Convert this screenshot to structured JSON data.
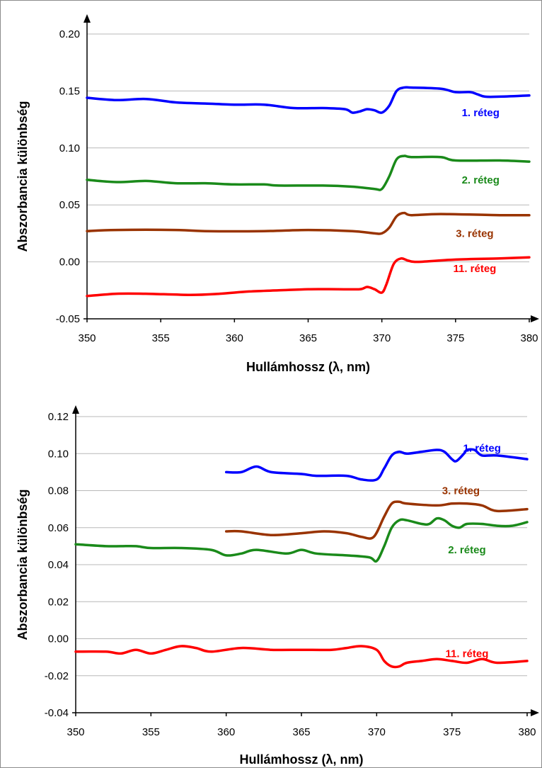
{
  "chart_data": [
    {
      "type": "line",
      "xlabel": "Hullámhossz (λ, nm)",
      "ylabel": "Abszorbancia különbség",
      "xlim": [
        350,
        380
      ],
      "ylim": [
        -0.05,
        0.2
      ],
      "x_ticks": [
        350,
        355,
        360,
        365,
        370,
        375,
        380
      ],
      "y_ticks": [
        "-0.05",
        "0.00",
        "0.05",
        "0.10",
        "0.15",
        "0.20"
      ],
      "grid": "horizontal",
      "series": [
        {
          "name": "1. réteg",
          "color": "#0000ff",
          "label_at": [
            376.7,
            0.131
          ],
          "points": [
            [
              350,
              0.144
            ],
            [
              352,
              0.142
            ],
            [
              354,
              0.143
            ],
            [
              356,
              0.14
            ],
            [
              358,
              0.139
            ],
            [
              360,
              0.138
            ],
            [
              362,
              0.138
            ],
            [
              364,
              0.135
            ],
            [
              366,
              0.135
            ],
            [
              367.5,
              0.134
            ],
            [
              368,
              0.131
            ],
            [
              368.5,
              0.132
            ],
            [
              369,
              0.134
            ],
            [
              369.5,
              0.133
            ],
            [
              370,
              0.131
            ],
            [
              370.5,
              0.137
            ],
            [
              371,
              0.15
            ],
            [
              371.5,
              0.153
            ],
            [
              372,
              0.153
            ],
            [
              374,
              0.152
            ],
            [
              375,
              0.149
            ],
            [
              376,
              0.149
            ],
            [
              376.5,
              0.147
            ],
            [
              377,
              0.145
            ],
            [
              378,
              0.145
            ],
            [
              380,
              0.146
            ]
          ]
        },
        {
          "name": "2. réteg",
          "color": "#1a8a1a",
          "label_at": [
            376.7,
            0.072
          ],
          "points": [
            [
              350,
              0.072
            ],
            [
              352,
              0.07
            ],
            [
              354,
              0.071
            ],
            [
              356,
              0.069
            ],
            [
              358,
              0.069
            ],
            [
              360,
              0.068
            ],
            [
              362,
              0.068
            ],
            [
              363,
              0.067
            ],
            [
              366,
              0.067
            ],
            [
              368,
              0.066
            ],
            [
              369.5,
              0.064
            ],
            [
              370,
              0.064
            ],
            [
              370.5,
              0.075
            ],
            [
              371,
              0.09
            ],
            [
              371.5,
              0.093
            ],
            [
              372,
              0.092
            ],
            [
              374,
              0.092
            ],
            [
              375,
              0.089
            ],
            [
              378,
              0.089
            ],
            [
              380,
              0.088
            ]
          ]
        },
        {
          "name": "3. réteg",
          "color": "#993300",
          "label_at": [
            376.3,
            0.025
          ],
          "points": [
            [
              350,
              0.027
            ],
            [
              352,
              0.028
            ],
            [
              356,
              0.028
            ],
            [
              358,
              0.027
            ],
            [
              362,
              0.027
            ],
            [
              365,
              0.028
            ],
            [
              368,
              0.027
            ],
            [
              369.5,
              0.025
            ],
            [
              370,
              0.025
            ],
            [
              370.5,
              0.03
            ],
            [
              371,
              0.04
            ],
            [
              371.5,
              0.043
            ],
            [
              372,
              0.041
            ],
            [
              374,
              0.042
            ],
            [
              378,
              0.041
            ],
            [
              380,
              0.041
            ]
          ]
        },
        {
          "name": "11. réteg",
          "color": "#ff0000",
          "label_at": [
            376.3,
            -0.006
          ],
          "points": [
            [
              350,
              -0.03
            ],
            [
              352,
              -0.028
            ],
            [
              354,
              -0.028
            ],
            [
              357,
              -0.029
            ],
            [
              359,
              -0.028
            ],
            [
              361,
              -0.026
            ],
            [
              363,
              -0.025
            ],
            [
              365,
              -0.024
            ],
            [
              367,
              -0.024
            ],
            [
              368.5,
              -0.024
            ],
            [
              369,
              -0.022
            ],
            [
              369.5,
              -0.024
            ],
            [
              370,
              -0.027
            ],
            [
              370.3,
              -0.02
            ],
            [
              370.8,
              -0.002
            ],
            [
              371.3,
              0.003
            ],
            [
              371.8,
              0.001
            ],
            [
              372.5,
              0.0
            ],
            [
              375,
              0.002
            ],
            [
              378,
              0.003
            ],
            [
              380,
              0.004
            ]
          ]
        }
      ]
    },
    {
      "type": "line",
      "xlabel": "Hullámhossz (λ, nm)",
      "ylabel": "Abszorbancia különbség",
      "xlim": [
        350,
        380
      ],
      "ylim": [
        -0.04,
        0.12
      ],
      "x_ticks": [
        350,
        355,
        360,
        365,
        370,
        375,
        380
      ],
      "y_ticks": [
        "-0.04",
        "-0.02",
        "0.00",
        "0.02",
        "0.04",
        "0.06",
        "0.08",
        "0.10",
        "0.12"
      ],
      "grid": "horizontal",
      "series": [
        {
          "name": "1. réteg",
          "color": "#0000ff",
          "label_at": [
            377,
            0.103
          ],
          "points": [
            [
              360,
              0.09
            ],
            [
              361,
              0.09
            ],
            [
              362,
              0.093
            ],
            [
              363,
              0.09
            ],
            [
              365,
              0.089
            ],
            [
              366,
              0.088
            ],
            [
              368,
              0.088
            ],
            [
              369,
              0.086
            ],
            [
              370,
              0.086
            ],
            [
              370.5,
              0.092
            ],
            [
              371,
              0.099
            ],
            [
              371.5,
              0.101
            ],
            [
              372,
              0.1
            ],
            [
              373,
              0.101
            ],
            [
              374,
              0.102
            ],
            [
              374.5,
              0.101
            ],
            [
              375,
              0.097
            ],
            [
              375.3,
              0.096
            ],
            [
              375.8,
              0.1
            ],
            [
              376,
              0.102
            ],
            [
              376.5,
              0.102
            ],
            [
              377,
              0.099
            ],
            [
              378,
              0.099
            ],
            [
              380,
              0.097
            ]
          ]
        },
        {
          "name": "3. réteg",
          "color": "#993300",
          "label_at": [
            375.6,
            0.08
          ],
          "points": [
            [
              360,
              0.058
            ],
            [
              361,
              0.058
            ],
            [
              363,
              0.056
            ],
            [
              365,
              0.057
            ],
            [
              366.5,
              0.058
            ],
            [
              368,
              0.057
            ],
            [
              369,
              0.055
            ],
            [
              369.8,
              0.055
            ],
            [
              370.5,
              0.066
            ],
            [
              371,
              0.073
            ],
            [
              371.5,
              0.074
            ],
            [
              372,
              0.073
            ],
            [
              374,
              0.072
            ],
            [
              375,
              0.073
            ],
            [
              376,
              0.073
            ],
            [
              377,
              0.072
            ],
            [
              378,
              0.069
            ],
            [
              380,
              0.07
            ]
          ]
        },
        {
          "name": "2. réteg",
          "color": "#1a8a1a",
          "label_at": [
            376,
            0.048
          ],
          "points": [
            [
              350,
              0.051
            ],
            [
              352,
              0.05
            ],
            [
              353,
              0.05
            ],
            [
              354,
              0.05
            ],
            [
              355,
              0.049
            ],
            [
              357,
              0.049
            ],
            [
              359,
              0.048
            ],
            [
              360,
              0.045
            ],
            [
              361,
              0.046
            ],
            [
              362,
              0.048
            ],
            [
              364,
              0.046
            ],
            [
              365,
              0.048
            ],
            [
              366,
              0.046
            ],
            [
              368,
              0.045
            ],
            [
              369.5,
              0.044
            ],
            [
              370,
              0.042
            ],
            [
              370.5,
              0.05
            ],
            [
              371,
              0.06
            ],
            [
              371.5,
              0.064
            ],
            [
              372,
              0.064
            ],
            [
              373,
              0.062
            ],
            [
              373.5,
              0.062
            ],
            [
              374,
              0.065
            ],
            [
              374.5,
              0.064
            ],
            [
              375,
              0.061
            ],
            [
              375.5,
              0.06
            ],
            [
              376,
              0.062
            ],
            [
              377,
              0.062
            ],
            [
              378,
              0.061
            ],
            [
              379,
              0.061
            ],
            [
              380,
              0.063
            ]
          ]
        },
        {
          "name": "11. réteg",
          "color": "#ff0000",
          "label_at": [
            376,
            -0.008
          ],
          "points": [
            [
              350,
              -0.007
            ],
            [
              352,
              -0.007
            ],
            [
              353,
              -0.008
            ],
            [
              354,
              -0.006
            ],
            [
              355,
              -0.008
            ],
            [
              356,
              -0.006
            ],
            [
              357,
              -0.004
            ],
            [
              358,
              -0.005
            ],
            [
              359,
              -0.007
            ],
            [
              361,
              -0.005
            ],
            [
              363,
              -0.006
            ],
            [
              365,
              -0.006
            ],
            [
              367,
              -0.006
            ],
            [
              368,
              -0.005
            ],
            [
              369,
              -0.004
            ],
            [
              370,
              -0.006
            ],
            [
              370.5,
              -0.012
            ],
            [
              371,
              -0.015
            ],
            [
              371.5,
              -0.015
            ],
            [
              372,
              -0.013
            ],
            [
              373,
              -0.012
            ],
            [
              374,
              -0.011
            ],
            [
              375,
              -0.012
            ],
            [
              376,
              -0.013
            ],
            [
              377,
              -0.011
            ],
            [
              378,
              -0.013
            ],
            [
              380,
              -0.012
            ]
          ]
        }
      ]
    }
  ]
}
